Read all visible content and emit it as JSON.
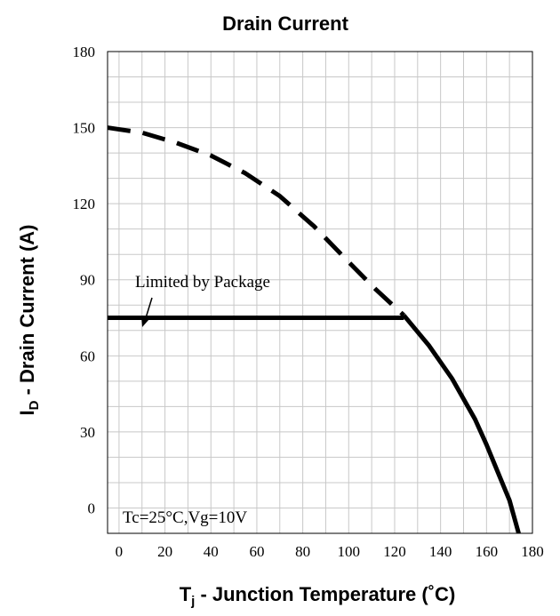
{
  "chart_data": {
    "type": "line",
    "title": "Drain Current",
    "ylabel": {
      "main": "I",
      "sub": "D",
      "rest": " - Drain Current (A)"
    },
    "xlabel": {
      "main": "T",
      "sub": "j",
      "rest": " - Junction Temperature (˚C)"
    },
    "xlim": [
      -5,
      180
    ],
    "ylim": [
      -10,
      180
    ],
    "x_ticks": [
      0,
      20,
      40,
      60,
      80,
      100,
      120,
      140,
      160,
      180
    ],
    "y_ticks": [
      0,
      30,
      60,
      90,
      120,
      150,
      180
    ],
    "grid": true,
    "series": [
      {
        "style": "dashed",
        "x": [
          -5,
          10,
          25,
          40,
          55,
          70,
          85,
          100,
          112,
          124
        ],
        "y": [
          150,
          148,
          144,
          139,
          132,
          123,
          111,
          97,
          86,
          76
        ]
      },
      {
        "style": "solid",
        "x": [
          -5,
          124
        ],
        "y": [
          75,
          75
        ]
      },
      {
        "style": "solid",
        "x": [
          124,
          135,
          145,
          155,
          160,
          165,
          170,
          174
        ],
        "y": [
          76,
          64,
          51,
          35,
          25,
          14,
          3,
          -10
        ]
      }
    ],
    "annotations": {
      "package_label": "Limited by Package",
      "conditions": "Tc=25°C,Vg=10V"
    }
  }
}
